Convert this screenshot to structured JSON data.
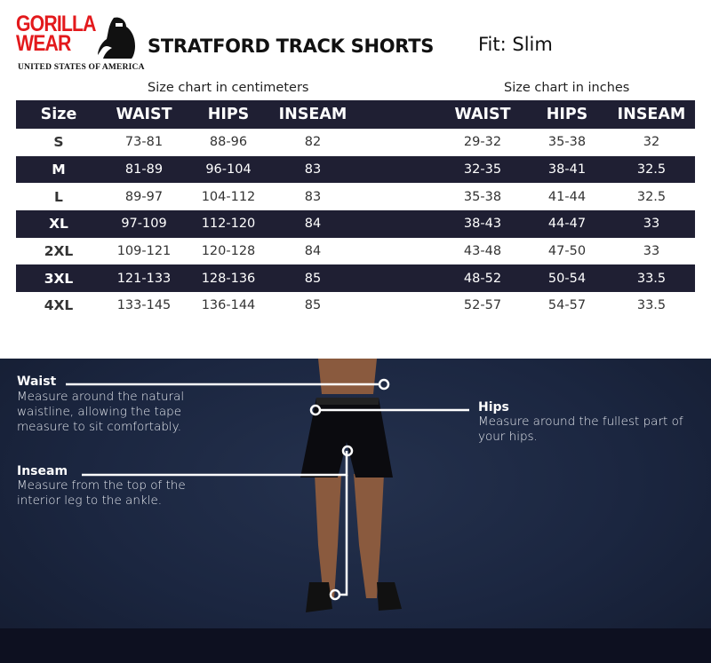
{
  "brand": {
    "line1": "GORILLA",
    "line2": "WEAR",
    "subtitle": "UNITED STATES OF AMERICA",
    "color": "#e3191c"
  },
  "title": "STRATFORD TRACK SHORTS",
  "fit": "Fit: Slim",
  "cm_caption": "Size chart in centimeters",
  "in_caption": "Size chart in inches",
  "headers": {
    "size": "Size",
    "waist": "WAIST",
    "hips": "HIPS",
    "inseam": "INSEAM",
    "waist_in": "WAIST",
    "hips_in": "HIPS",
    "inseam_in": "INSEAM"
  },
  "rows": [
    {
      "size": "S",
      "waist": "73-81",
      "hips": "88-96",
      "inseam": "82",
      "waist_in": "29-32",
      "hips_in": "35-38",
      "inseam_in": "32"
    },
    {
      "size": "M",
      "waist": "81-89",
      "hips": "96-104",
      "inseam": "83",
      "waist_in": "32-35",
      "hips_in": "38-41",
      "inseam_in": "32.5"
    },
    {
      "size": "L",
      "waist": "89-97",
      "hips": "104-112",
      "inseam": "83",
      "waist_in": "35-38",
      "hips_in": "41-44",
      "inseam_in": "32.5"
    },
    {
      "size": "XL",
      "waist": "97-109",
      "hips": "112-120",
      "inseam": "84",
      "waist_in": "38-43",
      "hips_in": "44-47",
      "inseam_in": "33"
    },
    {
      "size": "2XL",
      "waist": "109-121",
      "hips": "120-128",
      "inseam": "84",
      "waist_in": "43-48",
      "hips_in": "47-50",
      "inseam_in": "33"
    },
    {
      "size": "3XL",
      "waist": "121-133",
      "hips": "128-136",
      "inseam": "85",
      "waist_in": "48-52",
      "hips_in": "50-54",
      "inseam_in": "33.5"
    },
    {
      "size": "4XL",
      "waist": "133-145",
      "hips": "136-144",
      "inseam": "85",
      "waist_in": "52-57",
      "hips_in": "54-57",
      "inseam_in": "33.5"
    }
  ],
  "guide": {
    "waist": {
      "label": "Waist",
      "desc": "Measure around the natural waistline, allowing the tape measure to sit comfortably."
    },
    "hips": {
      "label": "Hips",
      "desc": "Measure around the fullest part of your hips."
    },
    "inseam": {
      "label": "Inseam",
      "desc": "Measure from the top of the interior leg to the ankle."
    }
  },
  "colors": {
    "table_dark": "#1f1f33",
    "panel": "#1b2640"
  }
}
